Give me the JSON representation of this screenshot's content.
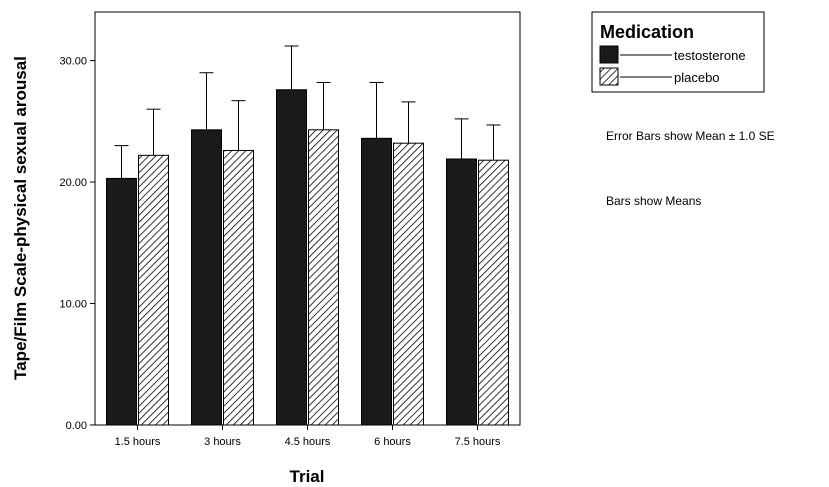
{
  "chart_data": {
    "type": "bar",
    "title": "",
    "xlabel": "Trial",
    "ylabel": "Tape/Film Scale-physical sexual arousal",
    "categories": [
      "1.5 hours",
      "3 hours",
      "4.5 hours",
      "6 hours",
      "7.5 hours"
    ],
    "series": [
      {
        "name": "testosterone",
        "values": [
          20.3,
          24.3,
          27.6,
          23.6,
          21.9
        ],
        "se": [
          2.7,
          4.7,
          3.6,
          4.6,
          3.3
        ],
        "fill": "solid",
        "color": "#1a1a1a"
      },
      {
        "name": "placebo",
        "values": [
          22.2,
          22.6,
          24.3,
          23.2,
          21.8
        ],
        "se": [
          3.8,
          4.1,
          3.9,
          3.4,
          2.9
        ],
        "fill": "hatched",
        "color": "#1a1a1a"
      }
    ],
    "ylim": [
      0,
      34
    ],
    "yticks": [
      0,
      10,
      20,
      30
    ],
    "ytick_labels": [
      "0.00",
      "10.00",
      "20.00",
      "30.00"
    ],
    "grid": false,
    "legend": {
      "title": "Medication",
      "placement": "top-right",
      "entries": [
        "testosterone",
        "placebo"
      ]
    },
    "annotations": [
      "Error Bars show Mean ± 1.0 SE",
      "Bars show Means"
    ]
  }
}
